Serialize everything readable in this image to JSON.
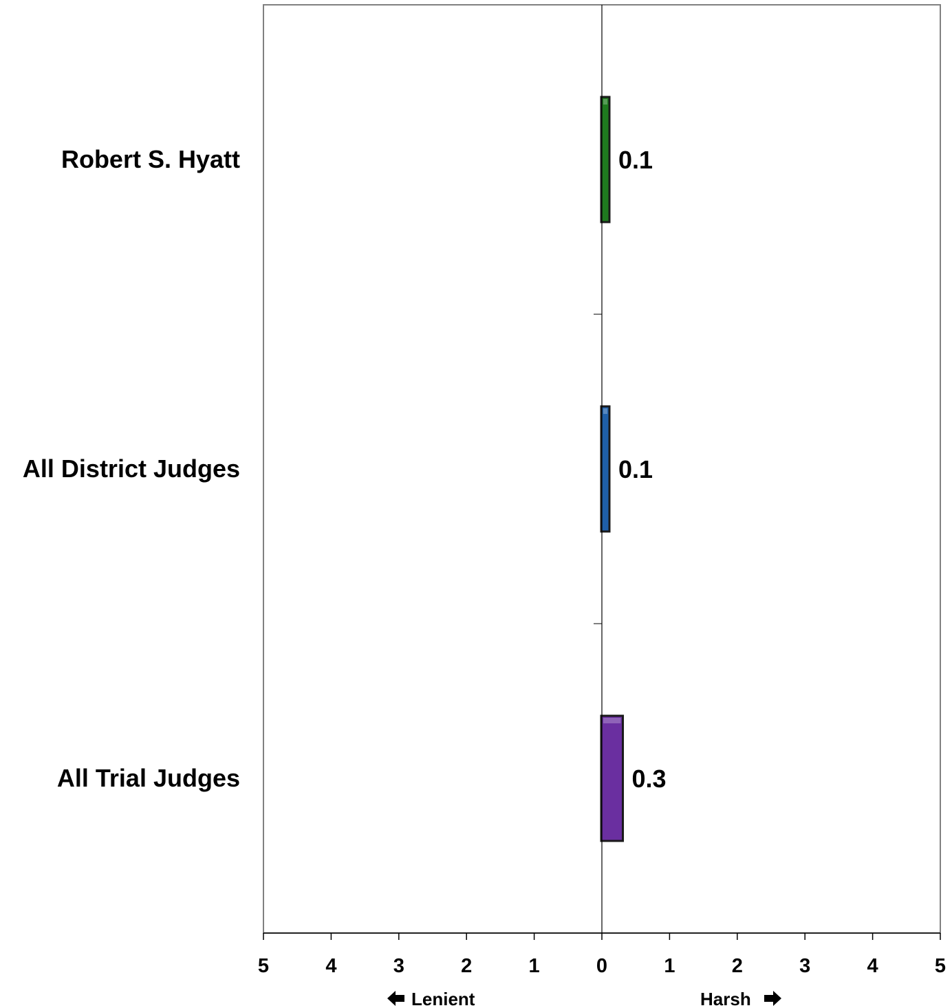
{
  "chart_data": {
    "type": "bar",
    "orientation": "horizontal",
    "categories": [
      "Robert S. Hyatt",
      "All District Judges",
      "All Trial Judges"
    ],
    "values": [
      0.1,
      0.1,
      0.3
    ],
    "value_labels": [
      "0.1",
      "0.1",
      "0.3"
    ],
    "colors": [
      "#1f7a1f",
      "#1f5fa8",
      "#6a2fa0"
    ],
    "xlim": [
      -5,
      5
    ],
    "x_ticks": [
      -5,
      -4,
      -3,
      -2,
      -1,
      0,
      1,
      2,
      3,
      4,
      5
    ],
    "x_tick_labels": [
      "5",
      "4",
      "3",
      "2",
      "1",
      "0",
      "1",
      "2",
      "3",
      "4",
      "5"
    ],
    "direction_labels": {
      "left": "Lenient",
      "right": "Harsh"
    },
    "grid": false,
    "legend": "none"
  }
}
